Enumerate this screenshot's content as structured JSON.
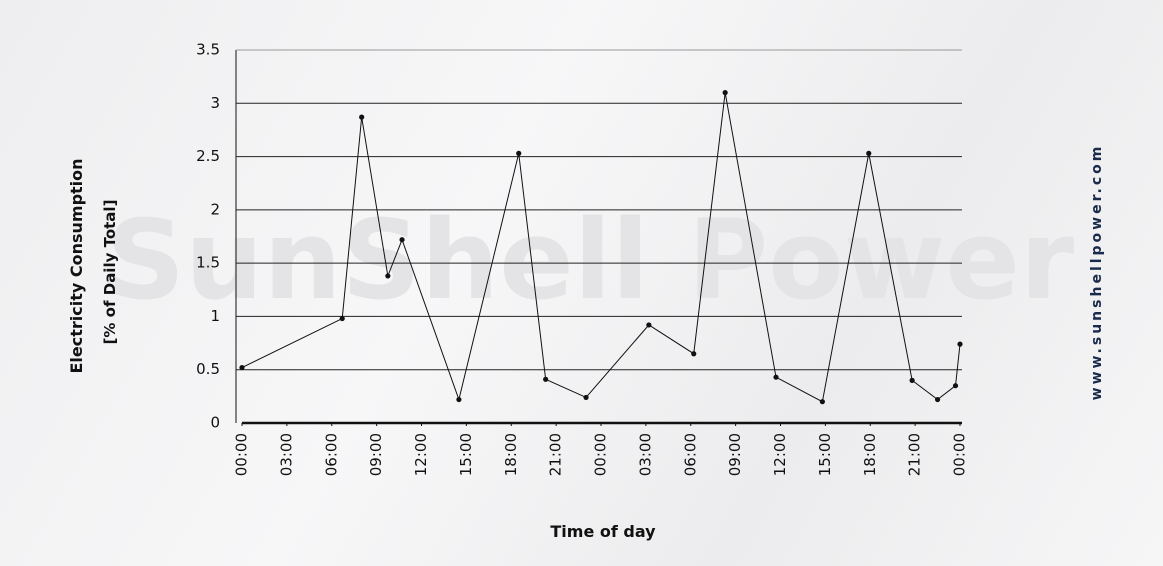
{
  "chart_data": {
    "type": "line",
    "y_label": [
      "Electricity Consumption",
      "[% of Daily Total]"
    ],
    "x_label": "Time of day",
    "watermark": "SunShell Power",
    "side_text": "www.sunshellpower.com",
    "x": [
      0,
      6.7,
      8,
      9.75,
      10.7,
      14.5,
      18.5,
      20.3,
      23,
      27.2,
      30.2,
      32.3,
      35.7,
      38.8,
      41.9,
      44.8,
      46.5,
      47.7,
      48
    ],
    "values": [
      0.52,
      0.98,
      2.87,
      1.38,
      1.72,
      0.22,
      2.53,
      0.41,
      0.24,
      0.92,
      0.65,
      3.1,
      0.43,
      0.2,
      2.53,
      0.4,
      0.22,
      0.35,
      0.74
    ],
    "color": "#111111",
    "xlim": [
      0,
      48
    ],
    "xticks": [
      {
        "value": 0,
        "label": "00:00"
      },
      {
        "value": 3,
        "label": "03:00"
      },
      {
        "value": 6,
        "label": "06:00"
      },
      {
        "value": 9,
        "label": "09:00"
      },
      {
        "value": 12,
        "label": "12:00"
      },
      {
        "value": 15,
        "label": "15:00"
      },
      {
        "value": 18,
        "label": "18:00"
      },
      {
        "value": 21,
        "label": "21:00"
      },
      {
        "value": 24,
        "label": "00:00"
      },
      {
        "value": 27,
        "label": "03:00"
      },
      {
        "value": 30,
        "label": "06:00"
      },
      {
        "value": 33,
        "label": "09:00"
      },
      {
        "value": 36,
        "label": "12:00"
      },
      {
        "value": 39,
        "label": "15:00"
      },
      {
        "value": 42,
        "label": "18:00"
      },
      {
        "value": 45,
        "label": "21:00"
      },
      {
        "value": 48,
        "label": "00:00"
      }
    ],
    "ylim": [
      0,
      3.5
    ],
    "yticks": [
      0,
      0.5,
      1,
      1.5,
      2,
      2.5,
      3,
      3.5
    ],
    "grid": true
  }
}
